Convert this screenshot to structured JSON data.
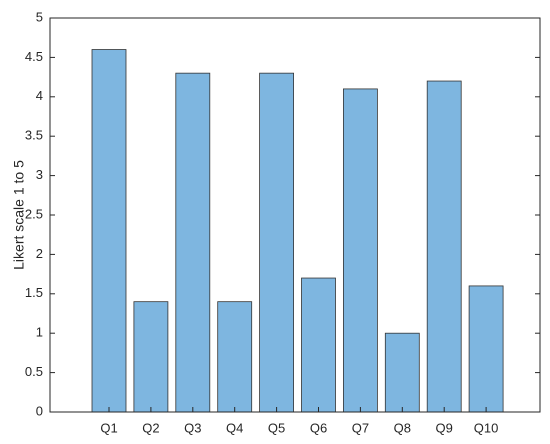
{
  "chart_data": {
    "type": "bar",
    "y_label": "Likert scale 1 to 5",
    "categories": [
      "Q1",
      "Q2",
      "Q3",
      "Q4",
      "Q5",
      "Q6",
      "Q7",
      "Q8",
      "Q9",
      "Q10"
    ],
    "values": [
      4.6,
      1.4,
      4.3,
      1.4,
      4.3,
      1.7,
      4.1,
      1.0,
      4.2,
      1.6
    ],
    "color": "#7eb6e0",
    "ylim": [
      0,
      5
    ],
    "yticks": [
      0,
      0.5,
      1,
      1.5,
      2,
      2.5,
      3,
      3.5,
      4,
      4.5,
      5
    ],
    "grid": false
  }
}
